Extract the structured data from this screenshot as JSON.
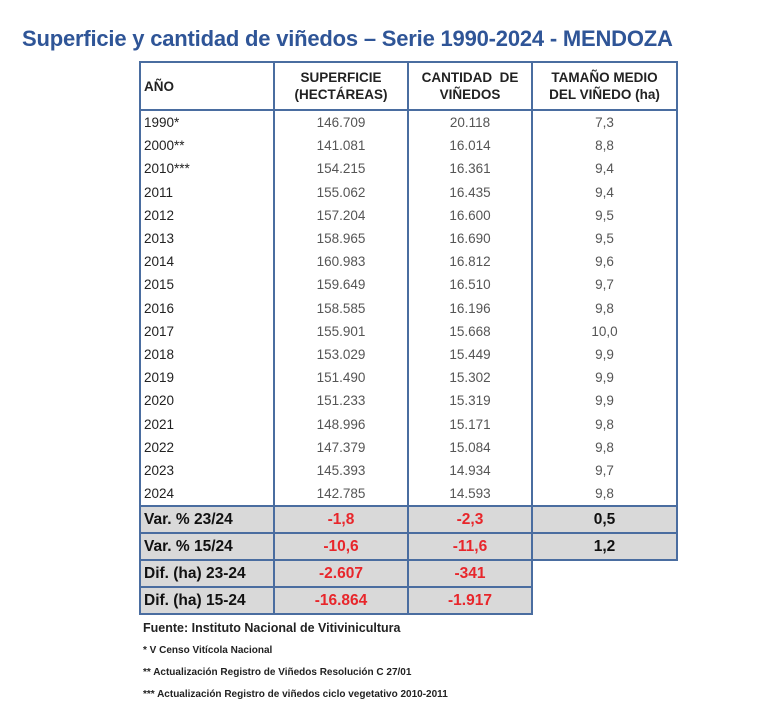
{
  "title": "Superficie y cantidad de viñedos – Serie 1990-2024 - MENDOZA",
  "headers": {
    "year": "AÑO",
    "area_1": "SUPERFICIE",
    "area_2": "(HECTÁREAS)",
    "count_1": "CANTIDAD  DE",
    "count_2": "VIÑEDOS",
    "size_1": "TAMAÑO MEDIO",
    "size_2": "DEL VIÑEDO (ha)"
  },
  "rows": [
    {
      "year": "1990*",
      "area": "146.709",
      "count": "20.118",
      "size": "7,3"
    },
    {
      "year": "2000**",
      "area": "141.081",
      "count": "16.014",
      "size": "8,8"
    },
    {
      "year": "2010***",
      "area": "154.215",
      "count": "16.361",
      "size": "9,4"
    },
    {
      "year": "2011",
      "area": "155.062",
      "count": "16.435",
      "size": "9,4"
    },
    {
      "year": "2012",
      "area": "157.204",
      "count": "16.600",
      "size": "9,5"
    },
    {
      "year": "2013",
      "area": "158.965",
      "count": "16.690",
      "size": "9,5"
    },
    {
      "year": "2014",
      "area": "160.983",
      "count": "16.812",
      "size": "9,6"
    },
    {
      "year": "2015",
      "area": "159.649",
      "count": "16.510",
      "size": "9,7"
    },
    {
      "year": "2016",
      "area": "158.585",
      "count": "16.196",
      "size": "9,8"
    },
    {
      "year": "2017",
      "area": "155.901",
      "count": "15.668",
      "size": "10,0"
    },
    {
      "year": "2018",
      "area": "153.029",
      "count": "15.449",
      "size": "9,9"
    },
    {
      "year": "2019",
      "area": "151.490",
      "count": "15.302",
      "size": "9,9"
    },
    {
      "year": "2020",
      "area": "151.233",
      "count": "15.319",
      "size": "9,9"
    },
    {
      "year": "2021",
      "area": "148.996",
      "count": "15.171",
      "size": "9,8"
    },
    {
      "year": "2022",
      "area": "147.379",
      "count": "15.084",
      "size": "9,8"
    },
    {
      "year": "2023",
      "area": "145.393",
      "count": "14.934",
      "size": "9,7"
    },
    {
      "year": "2024",
      "area": "142.785",
      "count": "14.593",
      "size": "9,8"
    }
  ],
  "summary": [
    {
      "label": "Var. % 23/24",
      "area": "-1,8",
      "count": "-2,3",
      "size": "0,5"
    },
    {
      "label": "Var. % 15/24",
      "area": "-10,6",
      "count": "-11,6",
      "size": "1,2"
    },
    {
      "label": "Dif. (ha) 23-24",
      "area": "-2.607",
      "count": "-341"
    },
    {
      "label": "Dif. (ha) 15-24",
      "area": "-16.864",
      "count": "-1.917"
    }
  ],
  "source": "Fuente: Instituto Nacional de Vitivinicultura",
  "notes": [
    "* V Censo Vitícola Nacional",
    "** Actualización Registro de Viñedos Resolución C 27/01",
    "*** Actualización Registro de viñedos ciclo vegetativo 2010-2011"
  ],
  "colors": {
    "title": "#2f5597",
    "negative": "#e8262b",
    "border": "#4a6da0",
    "summary_bg": "#d9d9d9"
  }
}
